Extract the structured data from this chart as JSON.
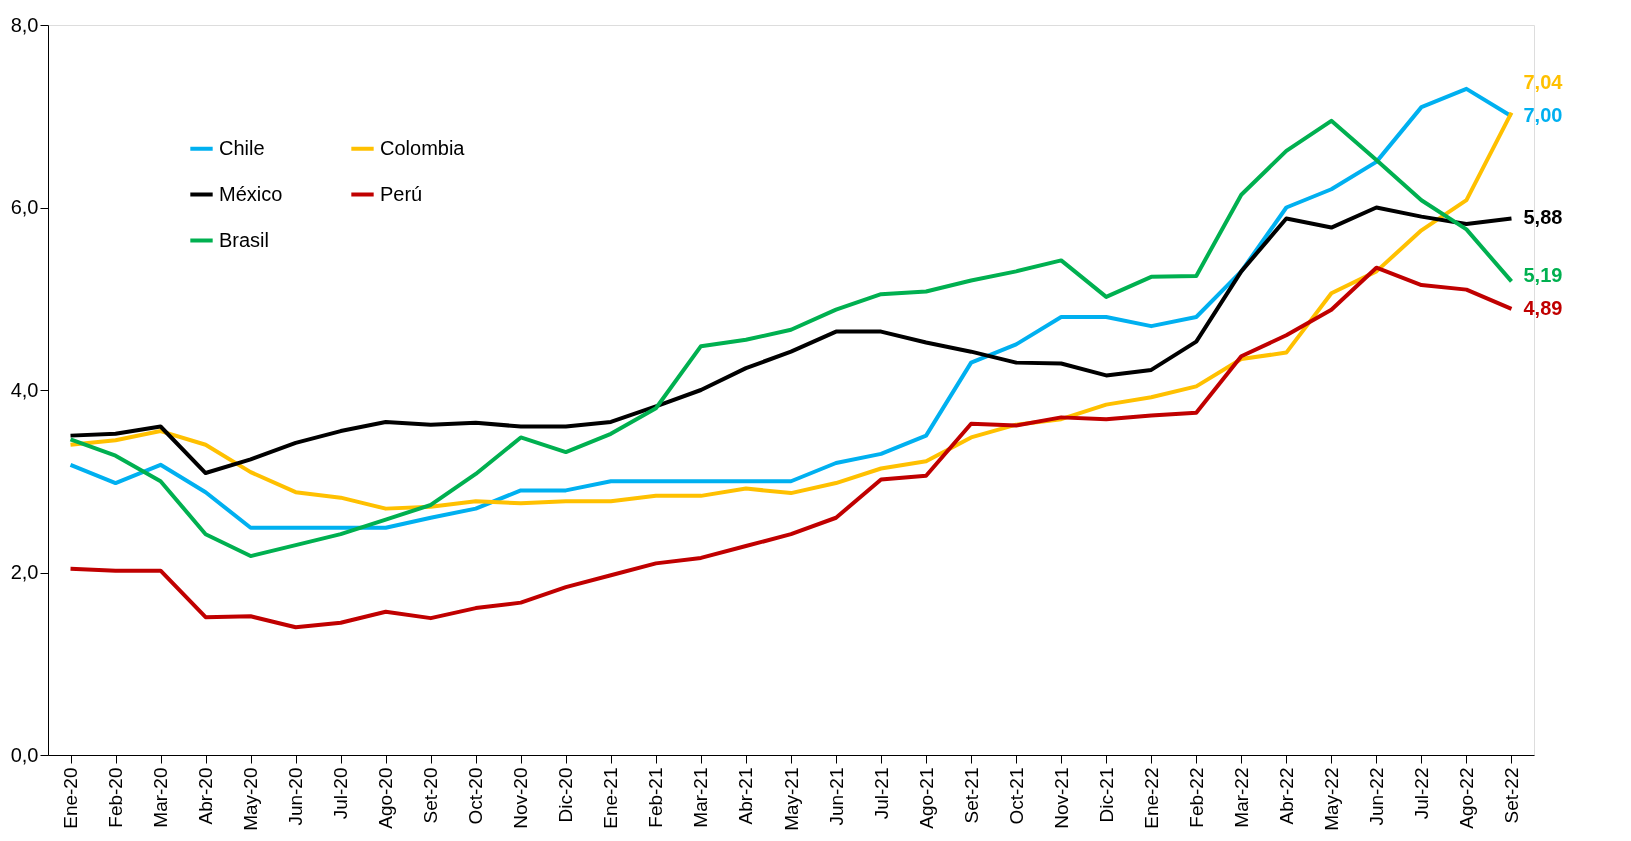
{
  "chart_data": {
    "type": "line",
    "categories": [
      "Ene-20",
      "Feb-20",
      "Mar-20",
      "Abr-20",
      "May-20",
      "Jun-20",
      "Jul-20",
      "Ago-20",
      "Set-20",
      "Oct-20",
      "Nov-20",
      "Dic-20",
      "Ene-21",
      "Feb-21",
      "Mar-21",
      "Abr-21",
      "May-21",
      "Jun-21",
      "Jul-21",
      "Ago-21",
      "Set-21",
      "Oct-21",
      "Nov-21",
      "Dic-21",
      "Ene-22",
      "Feb-22",
      "Mar-22",
      "Abr-22",
      "May-22",
      "Jun-22",
      "Jul-22",
      "Ago-22",
      "Set-22"
    ],
    "series": [
      {
        "name": "Chile",
        "color": "#00b0f0",
        "values": [
          3.18,
          2.98,
          3.18,
          2.88,
          2.49,
          2.49,
          2.49,
          2.49,
          2.6,
          2.7,
          2.9,
          2.9,
          3.0,
          3.0,
          3.0,
          3.0,
          3.0,
          3.2,
          3.3,
          3.5,
          4.3,
          4.5,
          4.8,
          4.8,
          4.7,
          4.8,
          5.3,
          6.0,
          6.2,
          6.5,
          7.1,
          7.3,
          7.0
        ],
        "value_labels": [
          null,
          null,
          null,
          null,
          null,
          null,
          null,
          null,
          null,
          null,
          null,
          null,
          null,
          null,
          null,
          null,
          null,
          null,
          null,
          null,
          null,
          null,
          null,
          null,
          null,
          null,
          null,
          null,
          null,
          null,
          null,
          null,
          "7,00"
        ]
      },
      {
        "name": "Colombia",
        "color": "#ffc000",
        "values": [
          3.4,
          3.45,
          3.55,
          3.4,
          3.1,
          2.88,
          2.82,
          2.7,
          2.72,
          2.78,
          2.76,
          2.78,
          2.78,
          2.84,
          2.84,
          2.92,
          2.87,
          2.98,
          3.14,
          3.22,
          3.48,
          3.62,
          3.68,
          3.84,
          3.92,
          4.04,
          4.34,
          4.41,
          5.06,
          5.3,
          5.75,
          6.08,
          7.04
        ],
        "value_labels": [
          null,
          null,
          null,
          null,
          null,
          null,
          null,
          null,
          null,
          null,
          null,
          null,
          null,
          null,
          null,
          null,
          null,
          null,
          null,
          null,
          null,
          null,
          null,
          null,
          null,
          null,
          null,
          null,
          null,
          null,
          null,
          null,
          "7,04"
        ]
      },
      {
        "name": "México",
        "color": "#000000",
        "values": [
          3.5,
          3.52,
          3.6,
          3.09,
          3.24,
          3.42,
          3.55,
          3.65,
          3.62,
          3.64,
          3.6,
          3.6,
          3.65,
          3.82,
          4.0,
          4.24,
          4.42,
          4.64,
          4.64,
          4.52,
          4.42,
          4.3,
          4.29,
          4.16,
          4.22,
          4.53,
          5.3,
          5.88,
          5.78,
          6.0,
          5.9,
          5.82,
          5.88
        ],
        "value_labels": [
          null,
          null,
          null,
          null,
          null,
          null,
          null,
          null,
          null,
          null,
          null,
          null,
          null,
          null,
          null,
          null,
          null,
          null,
          null,
          null,
          null,
          null,
          null,
          null,
          null,
          null,
          null,
          null,
          null,
          null,
          null,
          null,
          "5,88"
        ]
      },
      {
        "name": "Perú",
        "color": "#c00000",
        "values": [
          2.04,
          2.02,
          2.02,
          1.51,
          1.52,
          1.4,
          1.45,
          1.57,
          1.5,
          1.61,
          1.67,
          1.84,
          1.97,
          2.1,
          2.16,
          2.29,
          2.42,
          2.6,
          3.02,
          3.06,
          3.63,
          3.61,
          3.7,
          3.68,
          3.72,
          3.75,
          4.37,
          4.6,
          4.88,
          5.34,
          5.15,
          5.1,
          4.89
        ],
        "value_labels": [
          null,
          null,
          null,
          null,
          null,
          null,
          null,
          null,
          null,
          null,
          null,
          null,
          null,
          null,
          null,
          null,
          null,
          null,
          null,
          null,
          null,
          null,
          null,
          null,
          null,
          null,
          null,
          null,
          null,
          null,
          null,
          null,
          "4,89"
        ]
      },
      {
        "name": "Brasil",
        "color": "#00b050",
        "values": [
          3.46,
          3.28,
          3.0,
          2.42,
          2.18,
          2.3,
          2.42,
          2.58,
          2.74,
          3.08,
          3.48,
          3.32,
          3.52,
          3.8,
          4.48,
          4.55,
          4.66,
          4.88,
          5.05,
          5.08,
          5.2,
          5.3,
          5.42,
          5.02,
          5.24,
          5.25,
          6.14,
          6.62,
          6.95,
          6.52,
          6.08,
          5.76,
          5.19
        ],
        "value_labels": [
          null,
          null,
          null,
          null,
          null,
          null,
          null,
          null,
          null,
          null,
          null,
          null,
          null,
          null,
          null,
          null,
          null,
          null,
          null,
          null,
          null,
          null,
          null,
          null,
          null,
          null,
          null,
          null,
          null,
          null,
          null,
          null,
          "5,19"
        ]
      }
    ],
    "ylim": [
      0,
      8
    ],
    "yticks": [
      {
        "value": 0,
        "label": "0,0"
      },
      {
        "value": 2,
        "label": "2,0"
      },
      {
        "value": 4,
        "label": "4,0"
      },
      {
        "value": 6,
        "label": "6,0"
      },
      {
        "value": 8,
        "label": "8,0"
      }
    ],
    "grid": false,
    "legend": "top left",
    "marker": "none",
    "line_style": "solid"
  }
}
